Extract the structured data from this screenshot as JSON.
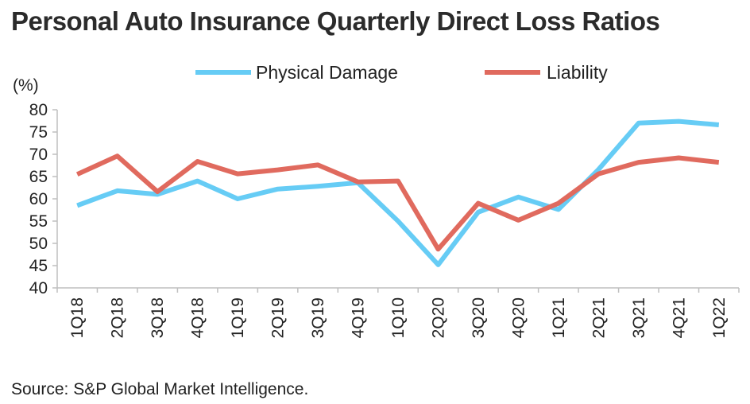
{
  "page_title": "Personal Auto Insurance Quarterly Direct Loss Ratios",
  "source": "Source: S&P Global Market Intelligence.",
  "chart_data": {
    "type": "line",
    "title": "Personal Auto Insurance Quarterly Direct Loss Ratios",
    "ylabel": "(%)",
    "xlabel": "",
    "ylim": [
      40,
      80
    ],
    "yticks": [
      40,
      45,
      50,
      55,
      60,
      65,
      70,
      75,
      80
    ],
    "categories": [
      "1Q18",
      "2Q18",
      "3Q18",
      "4Q18",
      "1Q19",
      "2Q19",
      "3Q19",
      "4Q19",
      "1Q10",
      "2Q20",
      "3Q20",
      "4Q20",
      "1Q21",
      "2Q21",
      "3Q21",
      "4Q21",
      "1Q22"
    ],
    "legend_position": "top",
    "grid": false,
    "series": [
      {
        "name": "Physical Damage",
        "color": "#66ccf5",
        "values": [
          58.5,
          61.8,
          61.0,
          64.0,
          60.0,
          62.2,
          62.8,
          63.6,
          55.0,
          45.2,
          57.0,
          60.4,
          57.6,
          66.6,
          77.0,
          77.4,
          76.6
        ]
      },
      {
        "name": "Liability",
        "color": "#e06a5e",
        "values": [
          65.5,
          69.6,
          61.6,
          68.4,
          65.6,
          66.5,
          67.6,
          63.8,
          64.0,
          48.7,
          59.0,
          55.2,
          59.0,
          65.6,
          68.2,
          69.2,
          68.2
        ]
      }
    ]
  }
}
